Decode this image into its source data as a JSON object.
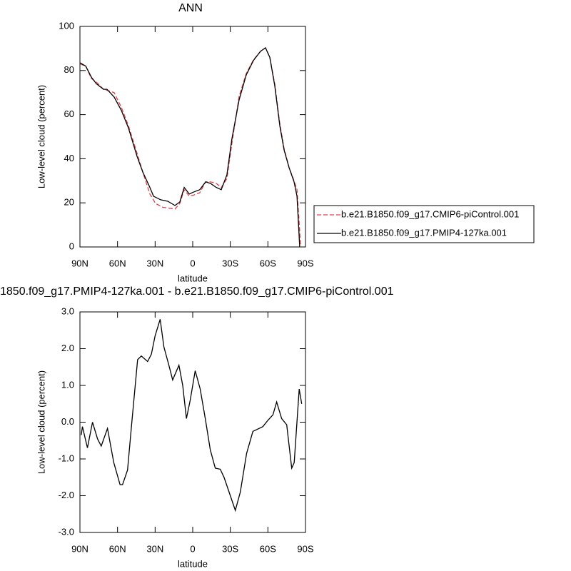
{
  "chart_data": [
    {
      "type": "line",
      "title": "ANN",
      "xlabel": "latitude",
      "ylabel": "Low-level cloud (percent)",
      "xlim": [
        90,
        -90
      ],
      "xticks": [
        {
          "value": 90,
          "label": "90N"
        },
        {
          "value": 60,
          "label": "60N"
        },
        {
          "value": 30,
          "label": "30N"
        },
        0,
        {
          "value": -30,
          "label": "30S"
        },
        {
          "value": -60,
          "label": "60S"
        },
        {
          "value": -90,
          "label": "90S"
        }
      ],
      "ylim": [
        0,
        100
      ],
      "yticks": [
        0,
        20,
        40,
        60,
        80,
        100
      ],
      "legend": "right",
      "series": [
        {
          "name": "b.e21.B1850.f09_g17.CMIP6-piControl.001",
          "color": "#e8404a",
          "style": "dashed",
          "x": [
            90,
            85.4,
            80.9,
            76.9,
            71.2,
            62.7,
            57,
            51.3,
            44.4,
            39.9,
            34.2,
            29.6,
            23.9,
            18.2,
            14.2,
            10.3,
            6.8,
            2.8,
            -1.1,
            -5.7,
            -10.3,
            -14.2,
            -18.8,
            -22.8,
            -27.3,
            -31.3,
            -37,
            -42.7,
            -48.4,
            -54.1,
            -58.1,
            -61.5,
            -65.5,
            -69.5,
            -72.9,
            -76.9,
            -79.8,
            -83.2,
            -84.9,
            -86.1
          ],
          "values": [
            83,
            82,
            76.4,
            74.8,
            71.5,
            70,
            63.4,
            55,
            42.4,
            34,
            24,
            19.7,
            18,
            17.5,
            17.2,
            19.7,
            26,
            23,
            23.6,
            24.6,
            29.5,
            29.5,
            28.8,
            27,
            31,
            47,
            68.3,
            78.6,
            84.8,
            88.7,
            90.3,
            86,
            73.8,
            56,
            44.7,
            36,
            31.7,
            26,
            11.7,
            0
          ]
        },
        {
          "name": "b.e21.B1850.f09_g17.PMIP4-127ka.001",
          "color": "#000000",
          "style": "solid",
          "x": [
            90,
            85.4,
            80.9,
            76.9,
            71.2,
            68.4,
            62.7,
            57,
            51.3,
            44.4,
            39.9,
            34.2,
            31.3,
            25.6,
            19.9,
            14.2,
            10.3,
            6.8,
            2.8,
            -1.1,
            -5.7,
            -10.3,
            -14.2,
            -18.8,
            -22.8,
            -27.3,
            -31.3,
            -37,
            -42.7,
            -48.4,
            -54.1,
            -58.1,
            -61.5,
            -65.5,
            -69.5,
            -72.9,
            -76.9,
            -80.9,
            -83.2,
            -84.3,
            -85.4
          ],
          "values": [
            83.5,
            82,
            77,
            74,
            71.5,
            71.5,
            68,
            62,
            54,
            41,
            34,
            27,
            23,
            21.4,
            20.7,
            18.8,
            20.4,
            27,
            24,
            25,
            26,
            29.5,
            28.8,
            27,
            26,
            32.7,
            49,
            66.7,
            78,
            84.5,
            88.7,
            90.3,
            86,
            73,
            55,
            44,
            36,
            29.5,
            23,
            11.7,
            0
          ]
        }
      ]
    },
    {
      "type": "line",
      "title": "1850.f09_g17.PMIP4-127ka.001 - b.e21.B1850.f09_g17.CMIP6-piControl.001",
      "xlabel": "latitude",
      "ylabel": "Low-level cloud (percent)",
      "xlim": [
        90,
        -90
      ],
      "xticks": [
        {
          "value": 90,
          "label": "90N"
        },
        {
          "value": 60,
          "label": "60N"
        },
        {
          "value": 30,
          "label": "30N"
        },
        0,
        {
          "value": -30,
          "label": "30S"
        },
        {
          "value": -60,
          "label": "60S"
        },
        {
          "value": -90,
          "label": "90S"
        }
      ],
      "ylim": [
        -3,
        3
      ],
      "yticks": [
        {
          "value": -3,
          "label": "-3.0"
        },
        {
          "value": -2,
          "label": "-2.0"
        },
        {
          "value": -1,
          "label": "-1.0"
        },
        {
          "value": 0,
          "label": "0.0"
        },
        {
          "value": 1,
          "label": "1.0"
        },
        {
          "value": 2,
          "label": "2.0"
        },
        {
          "value": 3,
          "label": "3.0"
        }
      ],
      "color": "#000000",
      "x": [
        89,
        88,
        84,
        80,
        76,
        73,
        68,
        63,
        58,
        56,
        52,
        49,
        44,
        41,
        36,
        33,
        30,
        26,
        23,
        19,
        16,
        11,
        8,
        5,
        2,
        -2,
        -6,
        -10,
        -14,
        -18,
        -22,
        -25,
        -30,
        -34,
        -38,
        -43,
        -48,
        -56,
        -60,
        -64,
        -67,
        -71,
        -75,
        -79,
        -81,
        -85,
        -87
      ],
      "values": [
        -0.35,
        -0.12,
        -0.7,
        0,
        -0.45,
        -0.65,
        -0.17,
        -1.1,
        -1.7,
        -1.7,
        -1.3,
        -0.15,
        1.7,
        1.8,
        1.65,
        1.85,
        2.35,
        2.8,
        2.05,
        1.55,
        1.15,
        1.55,
        1,
        0.1,
        0.6,
        1.4,
        0.9,
        0.1,
        -0.75,
        -1.25,
        -1.28,
        -1.5,
        -2,
        -2.4,
        -1.9,
        -0.85,
        -0.25,
        -0.12,
        0.05,
        0.2,
        0.55,
        0.1,
        -0.07,
        -1.25,
        -1.1,
        0.9,
        0.5
      ]
    }
  ]
}
